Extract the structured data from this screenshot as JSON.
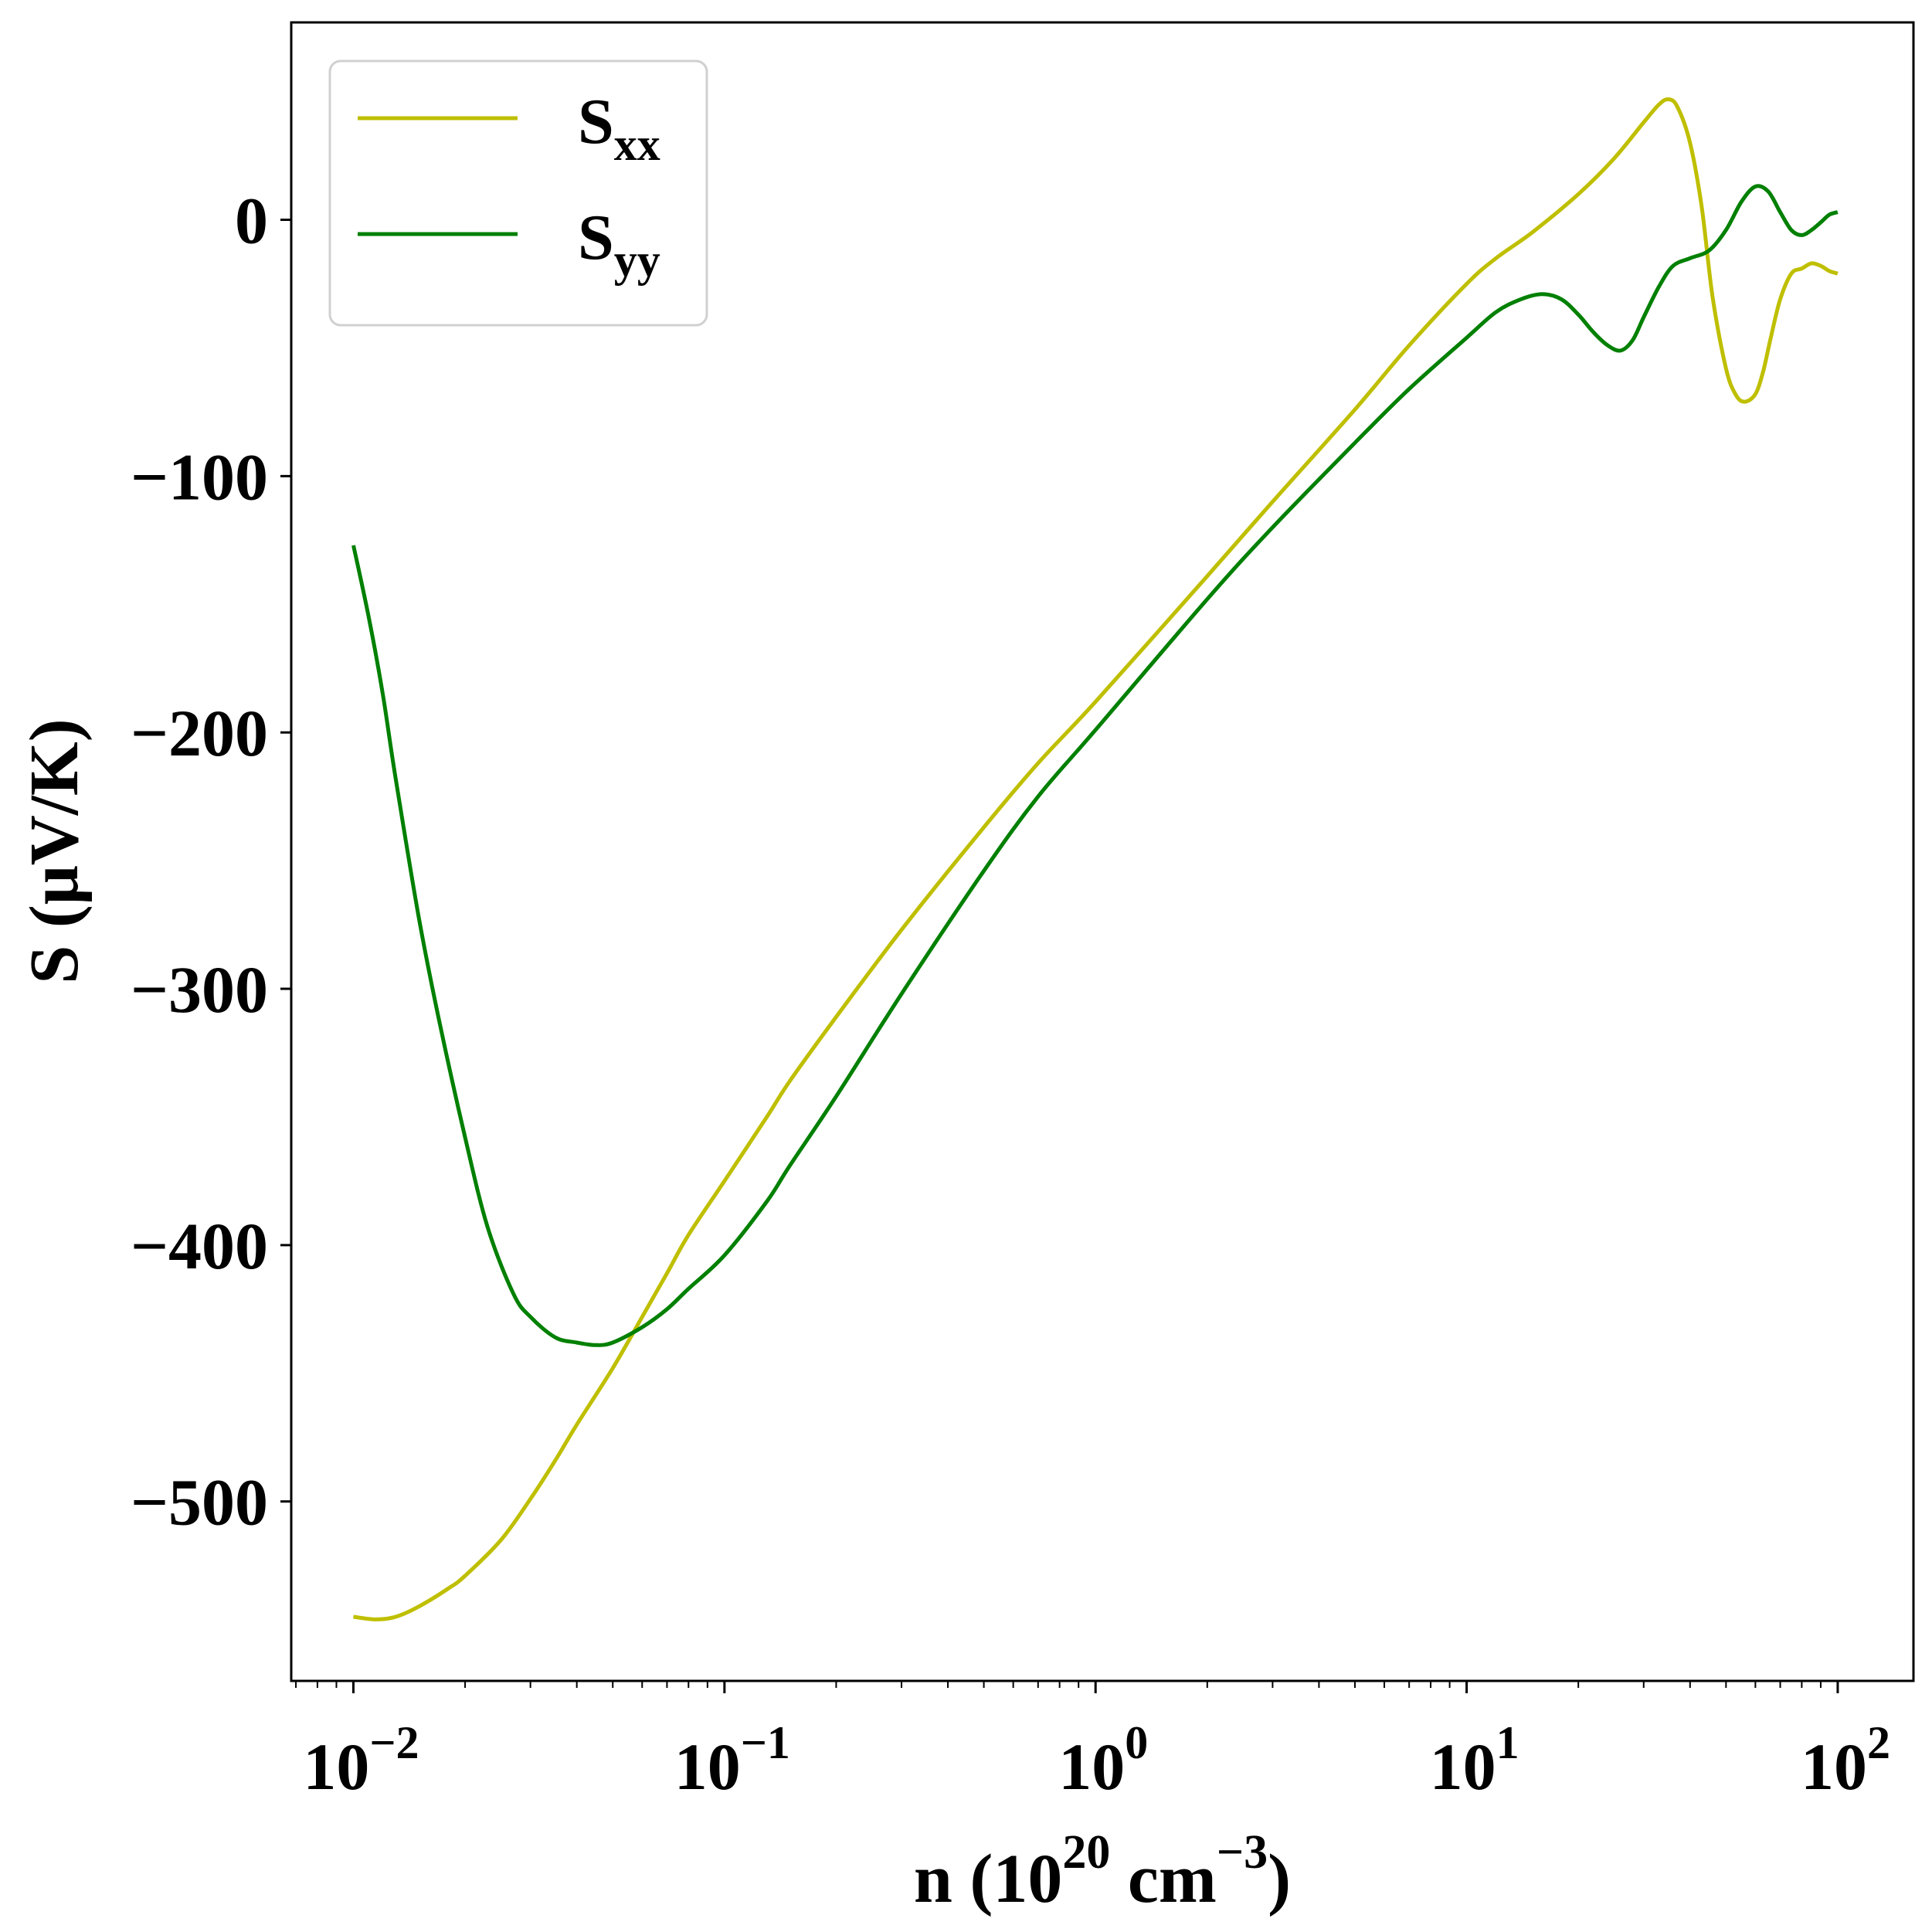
{
  "chart_data": {
    "type": "line",
    "title": "",
    "xlabel": {
      "base": "n (10",
      "sup1": "20",
      "mid": " cm",
      "sup2": "−3",
      "end": ")"
    },
    "ylabel": "S (μV/K)",
    "xscale": "log",
    "xlim": [
      0.0068,
      160
    ],
    "ylim": [
      -570,
      77
    ],
    "xticks": [
      {
        "value": 0.01,
        "base": "10",
        "exp": "−2"
      },
      {
        "value": 0.1,
        "base": "10",
        "exp": "−1"
      },
      {
        "value": 1,
        "base": "10",
        "exp": "0"
      },
      {
        "value": 10,
        "base": "10",
        "exp": "1"
      },
      {
        "value": 100,
        "base": "10",
        "exp": "2"
      }
    ],
    "yticks": [
      {
        "value": 0,
        "label": "0"
      },
      {
        "value": -100,
        "label": "−100"
      },
      {
        "value": -200,
        "label": "−200"
      },
      {
        "value": -300,
        "label": "−300"
      },
      {
        "value": -400,
        "label": "−400"
      },
      {
        "value": -500,
        "label": "−500"
      }
    ],
    "grid": false,
    "legend": "top-left",
    "series": [
      {
        "name": "S",
        "sub": "xx",
        "color": "#bfbf00",
        "x": [
          0.01,
          0.0115,
          0.013,
          0.015,
          0.018,
          0.02,
          0.025,
          0.03,
          0.035,
          0.04,
          0.05,
          0.06,
          0.07,
          0.08,
          0.1,
          0.13,
          0.15,
          0.2,
          0.3,
          0.5,
          0.7,
          1,
          2,
          3,
          5,
          7,
          10,
          12,
          15,
          20,
          25,
          30,
          33,
          35,
          37,
          40,
          43,
          46,
          50,
          53,
          56,
          60,
          63,
          66,
          70,
          75,
          80,
          85,
          90,
          95,
          100
        ],
        "y": [
          -545,
          -546,
          -545,
          -541,
          -534,
          -529,
          -515,
          -499,
          -484,
          -470,
          -448,
          -428,
          -411,
          -396,
          -375,
          -350,
          -336,
          -311,
          -277,
          -237,
          -212,
          -188,
          -139,
          -110,
          -74,
          -49,
          -25,
          -15,
          -5,
          10,
          24,
          38,
          45,
          47,
          44,
          30,
          5,
          -30,
          -58,
          -68,
          -71,
          -68,
          -59,
          -46,
          -31,
          -21,
          -19,
          -17,
          -18,
          -20,
          -21
        ]
      },
      {
        "name": "S",
        "sub": "yy",
        "color": "#008000",
        "x": [
          0.01,
          0.011,
          0.012,
          0.013,
          0.015,
          0.017,
          0.02,
          0.023,
          0.027,
          0.03,
          0.035,
          0.04,
          0.045,
          0.05,
          0.06,
          0.07,
          0.08,
          0.1,
          0.13,
          0.15,
          0.2,
          0.3,
          0.5,
          0.7,
          1,
          2,
          3,
          5,
          7,
          10,
          12,
          14,
          16,
          18,
          20,
          22,
          24,
          26,
          28,
          30,
          33,
          36,
          40,
          45,
          50,
          55,
          60,
          65,
          70,
          75,
          80,
          85,
          90,
          95,
          100
        ],
        "y": [
          -127,
          -155,
          -185,
          -218,
          -272,
          -312,
          -358,
          -393,
          -419,
          -428,
          -436,
          -438,
          -439,
          -438,
          -432,
          -425,
          -417,
          -404,
          -383,
          -369,
          -342,
          -302,
          -254,
          -225,
          -199,
          -148,
          -120,
          -87,
          -66,
          -46,
          -36,
          -31,
          -29,
          -31,
          -37,
          -44,
          -49,
          -51,
          -47,
          -38,
          -26,
          -18,
          -15,
          -12,
          -4,
          7,
          13,
          11,
          3,
          -4,
          -6,
          -4,
          -1,
          2,
          3
        ]
      }
    ]
  }
}
